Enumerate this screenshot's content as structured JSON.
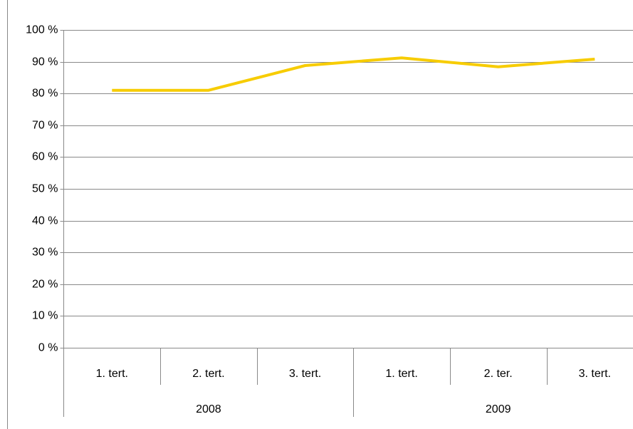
{
  "chart_data": {
    "type": "line",
    "categories": [
      "1. tert.",
      "2. tert.",
      "3. tert.",
      "1. tert.",
      "2. ter.",
      "3. tert."
    ],
    "groups": [
      "2008",
      "2009"
    ],
    "series": [
      {
        "color": "#f7cc00",
        "values": [
          81,
          81,
          88.8,
          91.2,
          88.4,
          90.8
        ]
      }
    ],
    "ylim": [
      0,
      100
    ],
    "yticks": [
      {
        "value": 0,
        "label": "0 %"
      },
      {
        "value": 10,
        "label": "10 %"
      },
      {
        "value": 20,
        "label": "20 %"
      },
      {
        "value": 30,
        "label": "30 %"
      },
      {
        "value": 40,
        "label": "40 %"
      },
      {
        "value": 50,
        "label": "50 %"
      },
      {
        "value": 60,
        "label": "60 %"
      },
      {
        "value": 70,
        "label": "70 %"
      },
      {
        "value": 80,
        "label": "80 %"
      },
      {
        "value": 90,
        "label": "90 %"
      },
      {
        "value": 100,
        "label": "100 %"
      }
    ],
    "grid": true
  }
}
